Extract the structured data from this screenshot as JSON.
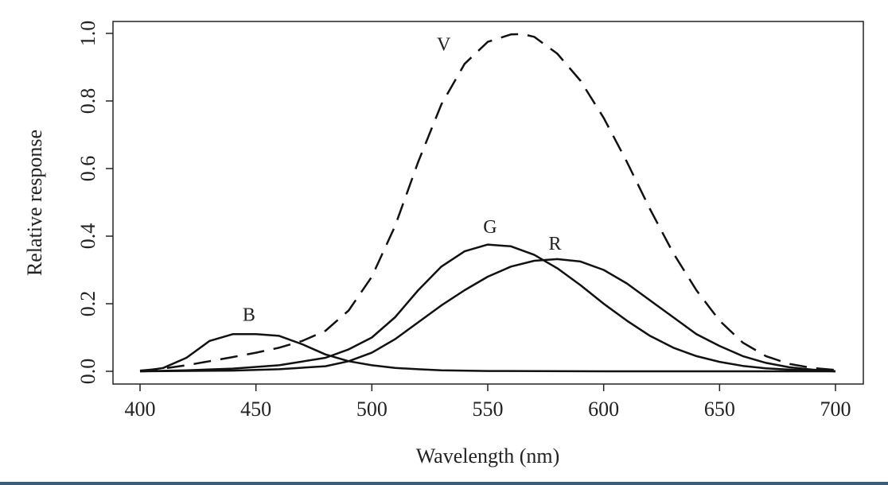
{
  "chart_data": {
    "type": "line",
    "title": "",
    "xlabel": "Wavelength (nm)",
    "ylabel": "Relative response",
    "xlim": [
      400,
      700
    ],
    "ylim": [
      0,
      1.0
    ],
    "xticks": [
      "400",
      "450",
      "500",
      "550",
      "600",
      "650",
      "700"
    ],
    "yticks": [
      "0.0",
      "0.2",
      "0.4",
      "0.6",
      "0.8",
      "1.0"
    ],
    "grid": false,
    "series": [
      {
        "name": "V",
        "style": "dashed",
        "label_at": [
          531,
          0.95
        ],
        "x": [
          400,
          410,
          420,
          430,
          440,
          450,
          460,
          470,
          480,
          490,
          500,
          510,
          520,
          530,
          540,
          550,
          560,
          565,
          570,
          580,
          590,
          600,
          610,
          620,
          630,
          640,
          650,
          660,
          670,
          680,
          690,
          700
        ],
        "y": [
          0.002,
          0.008,
          0.018,
          0.03,
          0.042,
          0.055,
          0.07,
          0.09,
          0.12,
          0.18,
          0.28,
          0.43,
          0.62,
          0.79,
          0.91,
          0.975,
          0.997,
          0.998,
          0.99,
          0.94,
          0.86,
          0.75,
          0.62,
          0.48,
          0.35,
          0.24,
          0.15,
          0.085,
          0.045,
          0.022,
          0.01,
          0.004
        ]
      },
      {
        "name": "G",
        "style": "solid",
        "label_at": [
          551,
          0.41
        ],
        "x": [
          400,
          420,
          440,
          460,
          480,
          490,
          500,
          510,
          520,
          530,
          540,
          550,
          560,
          570,
          580,
          590,
          600,
          610,
          620,
          630,
          640,
          650,
          660,
          670,
          680,
          690,
          700
        ],
        "y": [
          0,
          0.003,
          0.008,
          0.018,
          0.04,
          0.065,
          0.1,
          0.16,
          0.24,
          0.31,
          0.355,
          0.375,
          0.37,
          0.345,
          0.305,
          0.255,
          0.2,
          0.15,
          0.105,
          0.07,
          0.045,
          0.028,
          0.016,
          0.009,
          0.005,
          0.002,
          0
        ]
      },
      {
        "name": "R",
        "style": "solid",
        "label_at": [
          579,
          0.36
        ],
        "x": [
          400,
          440,
          460,
          480,
          490,
          500,
          510,
          520,
          530,
          540,
          550,
          560,
          570,
          580,
          590,
          600,
          610,
          620,
          630,
          640,
          650,
          660,
          670,
          680,
          690,
          700
        ],
        "y": [
          0,
          0.002,
          0.006,
          0.015,
          0.03,
          0.055,
          0.095,
          0.145,
          0.195,
          0.24,
          0.28,
          0.31,
          0.327,
          0.332,
          0.325,
          0.3,
          0.26,
          0.21,
          0.16,
          0.11,
          0.075,
          0.045,
          0.025,
          0.012,
          0.005,
          0
        ]
      },
      {
        "name": "B",
        "style": "solid",
        "label_at": [
          447,
          0.15
        ],
        "x": [
          400,
          410,
          420,
          430,
          440,
          450,
          460,
          470,
          480,
          490,
          500,
          510,
          520,
          530,
          550,
          600,
          700
        ],
        "y": [
          0,
          0.01,
          0.04,
          0.09,
          0.11,
          0.11,
          0.105,
          0.08,
          0.05,
          0.03,
          0.018,
          0.01,
          0.006,
          0.003,
          0.001,
          0,
          0
        ]
      }
    ]
  }
}
